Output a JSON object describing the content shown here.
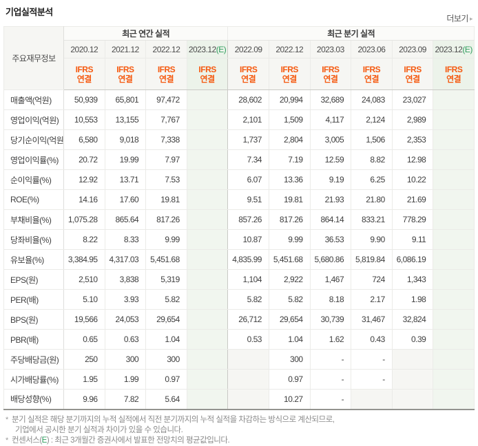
{
  "page": {
    "title": "기업실적분석",
    "more_label": "더보기",
    "more_arrow": "▸"
  },
  "table": {
    "corner_header": "주요재무정보",
    "groups": [
      {
        "label": "최근 연간 실적",
        "span": 4
      },
      {
        "label": "최근 분기 실적",
        "span": 6
      }
    ],
    "accounting_standard": {
      "name": "IFRS",
      "scope": "연결"
    },
    "columns": [
      {
        "period": "2020.12",
        "estimate": false
      },
      {
        "period": "2021.12",
        "estimate": false
      },
      {
        "period": "2022.12",
        "estimate": false
      },
      {
        "period": "2023.12",
        "suffix": "(E)",
        "estimate": true
      },
      {
        "period": "2022.09",
        "estimate": false
      },
      {
        "period": "2022.12",
        "estimate": false
      },
      {
        "period": "2023.03",
        "estimate": false
      },
      {
        "period": "2023.06",
        "estimate": false
      },
      {
        "period": "2023.09",
        "estimate": false
      },
      {
        "period": "2023.12",
        "suffix": "(E)",
        "estimate": true
      }
    ],
    "group_start_rows": [
      3,
      6,
      9,
      13
    ],
    "rows": [
      {
        "label": "매출액(억원)",
        "values": [
          "50,939",
          "65,801",
          "97,472",
          "",
          "28,602",
          "20,994",
          "32,689",
          "24,083",
          "23,027",
          ""
        ]
      },
      {
        "label": "영업이익(억원)",
        "values": [
          "10,553",
          "13,155",
          "7,767",
          "",
          "2,101",
          "1,509",
          "4,117",
          "2,124",
          "2,989",
          ""
        ]
      },
      {
        "label": "당기순이익(억원)",
        "values": [
          "6,580",
          "9,018",
          "7,338",
          "",
          "1,737",
          "2,804",
          "3,005",
          "1,506",
          "2,353",
          ""
        ]
      },
      {
        "label": "영업이익률(%)",
        "values": [
          "20.72",
          "19.99",
          "7.97",
          "",
          "7.34",
          "7.19",
          "12.59",
          "8.82",
          "12.98",
          ""
        ]
      },
      {
        "label": "순이익률(%)",
        "values": [
          "12.92",
          "13.71",
          "7.53",
          "",
          "6.07",
          "13.36",
          "9.19",
          "6.25",
          "10.22",
          ""
        ]
      },
      {
        "label": "ROE(%)",
        "values": [
          "14.16",
          "17.60",
          "19.81",
          "",
          "9.51",
          "19.81",
          "21.93",
          "21.80",
          "21.69",
          ""
        ]
      },
      {
        "label": "부채비율(%)",
        "values": [
          "1,075.28",
          "865.64",
          "817.26",
          "",
          "857.26",
          "817.26",
          "864.14",
          "833.21",
          "778.29",
          ""
        ]
      },
      {
        "label": "당좌비율(%)",
        "values": [
          "8.22",
          "8.33",
          "9.99",
          "",
          "10.87",
          "9.99",
          "36.53",
          "9.90",
          "9.11",
          ""
        ]
      },
      {
        "label": "유보율(%)",
        "values": [
          "3,384.95",
          "4,317.03",
          "5,451.68",
          "",
          "4,835.99",
          "5,451.68",
          "5,680.86",
          "5,819.84",
          "6,086.19",
          ""
        ]
      },
      {
        "label": "EPS(원)",
        "values": [
          "2,510",
          "3,838",
          "5,319",
          "",
          "1,104",
          "2,922",
          "1,467",
          "724",
          "1,343",
          ""
        ]
      },
      {
        "label": "PER(배)",
        "values": [
          "5.10",
          "3.93",
          "5.82",
          "",
          "5.82",
          "5.82",
          "8.18",
          "2.17",
          "1.98",
          ""
        ]
      },
      {
        "label": "BPS(원)",
        "values": [
          "19,566",
          "24,053",
          "29,654",
          "",
          "26,712",
          "29,654",
          "30,739",
          "31,467",
          "32,824",
          ""
        ]
      },
      {
        "label": "PBR(배)",
        "values": [
          "0.65",
          "0.63",
          "1.04",
          "",
          "0.53",
          "1.04",
          "1.62",
          "0.43",
          "0.39",
          ""
        ]
      },
      {
        "label": "주당배당금(원)",
        "values": [
          "250",
          "300",
          "300",
          "",
          null,
          "300",
          "-",
          "-",
          null,
          ""
        ]
      },
      {
        "label": "시가배당률(%)",
        "values": [
          "1.95",
          "1.99",
          "0.97",
          "",
          null,
          "0.97",
          "-",
          "-",
          null,
          ""
        ]
      },
      {
        "label": "배당성향(%)",
        "values": [
          "9.96",
          "7.82",
          "5.64",
          "",
          null,
          "10.27",
          "-",
          null,
          null,
          ""
        ]
      }
    ]
  },
  "footnotes": {
    "bullet": "*",
    "note1_line1": "분기 실적은 해당 분기까지의 누적 실적에서 직전 분기까지의 누적 실적을 차감하는 방식으로 계산되므로,",
    "note1_line2": "기업에서 공시한 분기 실적과 차이가 있을 수 있습니다.",
    "note2_prefix": "컨센서스(",
    "note2_highlight": "E",
    "note2_suffix": ") : 최근 3개월간 증권사에서 발표한 전망치의 평균값입니다."
  },
  "colors": {
    "accent_orange": "#f5590f",
    "estimate_green": "#2e9c5c",
    "estimate_bg_header": "#ecf3ea",
    "estimate_bg_cell": "#f1f6ef",
    "header_bg": "#f6f6f3",
    "empty_cell_bg": "#f6f6f3"
  }
}
